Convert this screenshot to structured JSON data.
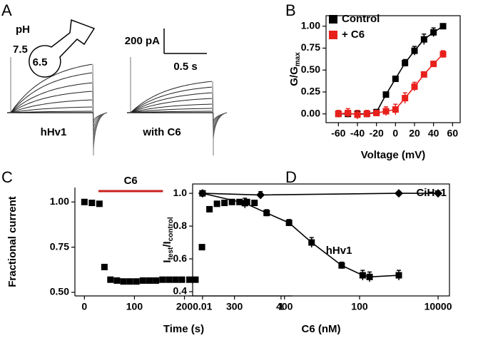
{
  "traces": {
    "label": "A",
    "ph_label": "pH",
    "ph_outer": "7.5",
    "ph_inner": "6.5",
    "scale_current": "200 pA",
    "scale_time": "0.5 s",
    "left_label": "hHv1",
    "right_label": "with C6"
  },
  "chart_data": [
    {
      "type": "scatter",
      "label": "B",
      "xlabel": "Voltage (mV)",
      "ylabel_parts": [
        "G/G",
        "max"
      ],
      "xlim": [
        -73,
        68
      ],
      "ylim": [
        -0.1,
        1.12
      ],
      "xticks": [
        -60,
        -40,
        -20,
        0,
        20,
        40,
        60
      ],
      "yticks": [
        {
          "value": 0,
          "label": "0.00"
        },
        {
          "value": 0.25,
          "label": "0.25"
        },
        {
          "value": 0.5,
          "label": "0.50"
        },
        {
          "value": 0.75,
          "label": "0.75"
        },
        {
          "value": 1,
          "label": "1.00"
        }
      ],
      "frame": "box",
      "legend": "upper-left",
      "connect": true,
      "x": [
        -60,
        -50,
        -40,
        -30,
        -20,
        -10,
        0,
        10,
        20,
        30,
        40,
        50
      ],
      "series": [
        {
          "name": "Control",
          "color": "#000000",
          "marker": "square",
          "values": [
            0,
            0,
            0,
            0,
            0.02,
            0.22,
            0.4,
            0.58,
            0.72,
            0.85,
            0.93,
            1.0
          ],
          "errors": [
            0.03,
            0.04,
            0.04,
            0.03,
            0.03,
            0.03,
            0.03,
            0.04,
            0.05,
            0.06,
            0.05,
            0.02
          ]
        },
        {
          "name": "+ C6",
          "color": "#e8201c",
          "marker": "square",
          "values": [
            0,
            0.01,
            -0.01,
            0,
            0.01,
            0.03,
            0.05,
            0.18,
            0.31,
            0.45,
            0.57,
            0.68
          ],
          "errors": [
            0.04,
            0.05,
            0.05,
            0.04,
            0.03,
            0.05,
            0.06,
            0.06,
            0.05,
            0.03,
            0.03,
            0.04
          ]
        }
      ]
    },
    {
      "type": "scatter",
      "label": "C",
      "xlabel": "Time (s)",
      "ylabel_parts": [
        "Fractional current"
      ],
      "xlim": [
        -19,
        416
      ],
      "ylim": [
        0.48,
        1.08
      ],
      "xticks": [
        0,
        100,
        200,
        300,
        400
      ],
      "yticks": [
        {
          "value": 0.5,
          "label": "0.50"
        },
        {
          "value": 0.75,
          "label": "0.75"
        },
        {
          "value": 1,
          "label": "1.00"
        }
      ],
      "frame": "axes",
      "connect": false,
      "x": [
        0,
        15,
        30,
        40,
        52,
        65,
        78,
        91,
        104,
        117,
        130,
        143,
        156,
        169,
        182,
        195,
        210,
        222,
        235,
        250,
        265,
        280,
        295,
        310,
        325,
        340
      ],
      "series": [
        {
          "color": "#000000",
          "marker": "square",
          "values": [
            1.0,
            0.995,
            0.99,
            0.64,
            0.57,
            0.565,
            0.56,
            0.56,
            0.56,
            0.565,
            0.565,
            0.565,
            0.57,
            0.57,
            0.57,
            0.57,
            0.57,
            0.57,
            0.75,
            0.96,
            0.99,
            0.995,
            1.0,
            1.0,
            1.0,
            0.995
          ]
        }
      ],
      "annotation": {
        "text": "C6",
        "color": "#c8201c",
        "range": [
          28,
          157
        ]
      }
    },
    {
      "type": "scatter",
      "label": "D",
      "xlabel": "C6 (nM)",
      "ylabel_parts": [
        "I",
        "test",
        "/I",
        "control"
      ],
      "xlim": [
        0.0056,
        19500
      ],
      "ylim": [
        0.374,
        1.057
      ],
      "xlog": true,
      "xticks": [
        0.01,
        1,
        100,
        10000
      ],
      "yticks": [
        0.4,
        0.6,
        0.8,
        {
          "value": 1,
          "label": "1.0"
        }
      ],
      "frame": "box",
      "connect": true,
      "series": [
        {
          "name": "CiHv1",
          "color": "#000000",
          "marker": "diamond",
          "x": [
            0.01,
            0.3,
            1000,
            10000
          ],
          "values": [
            1.0,
            0.99,
            1.0,
            1.0
          ],
          "errors": [
            0.01,
            0.02,
            0.01,
            0.01
          ]
        },
        {
          "name": "hHv1",
          "color": "#000000",
          "marker": "square",
          "x": [
            0.01,
            0.12,
            0.43,
            1.6,
            6,
            35,
            120,
            180,
            1000
          ],
          "values": [
            1.0,
            0.94,
            0.88,
            0.82,
            0.7,
            0.56,
            0.5,
            0.49,
            0.5
          ],
          "errors": [
            0.01,
            0.03,
            0.02,
            0.02,
            0.03,
            0.02,
            0.03,
            0.03,
            0.03
          ]
        }
      ]
    }
  ]
}
